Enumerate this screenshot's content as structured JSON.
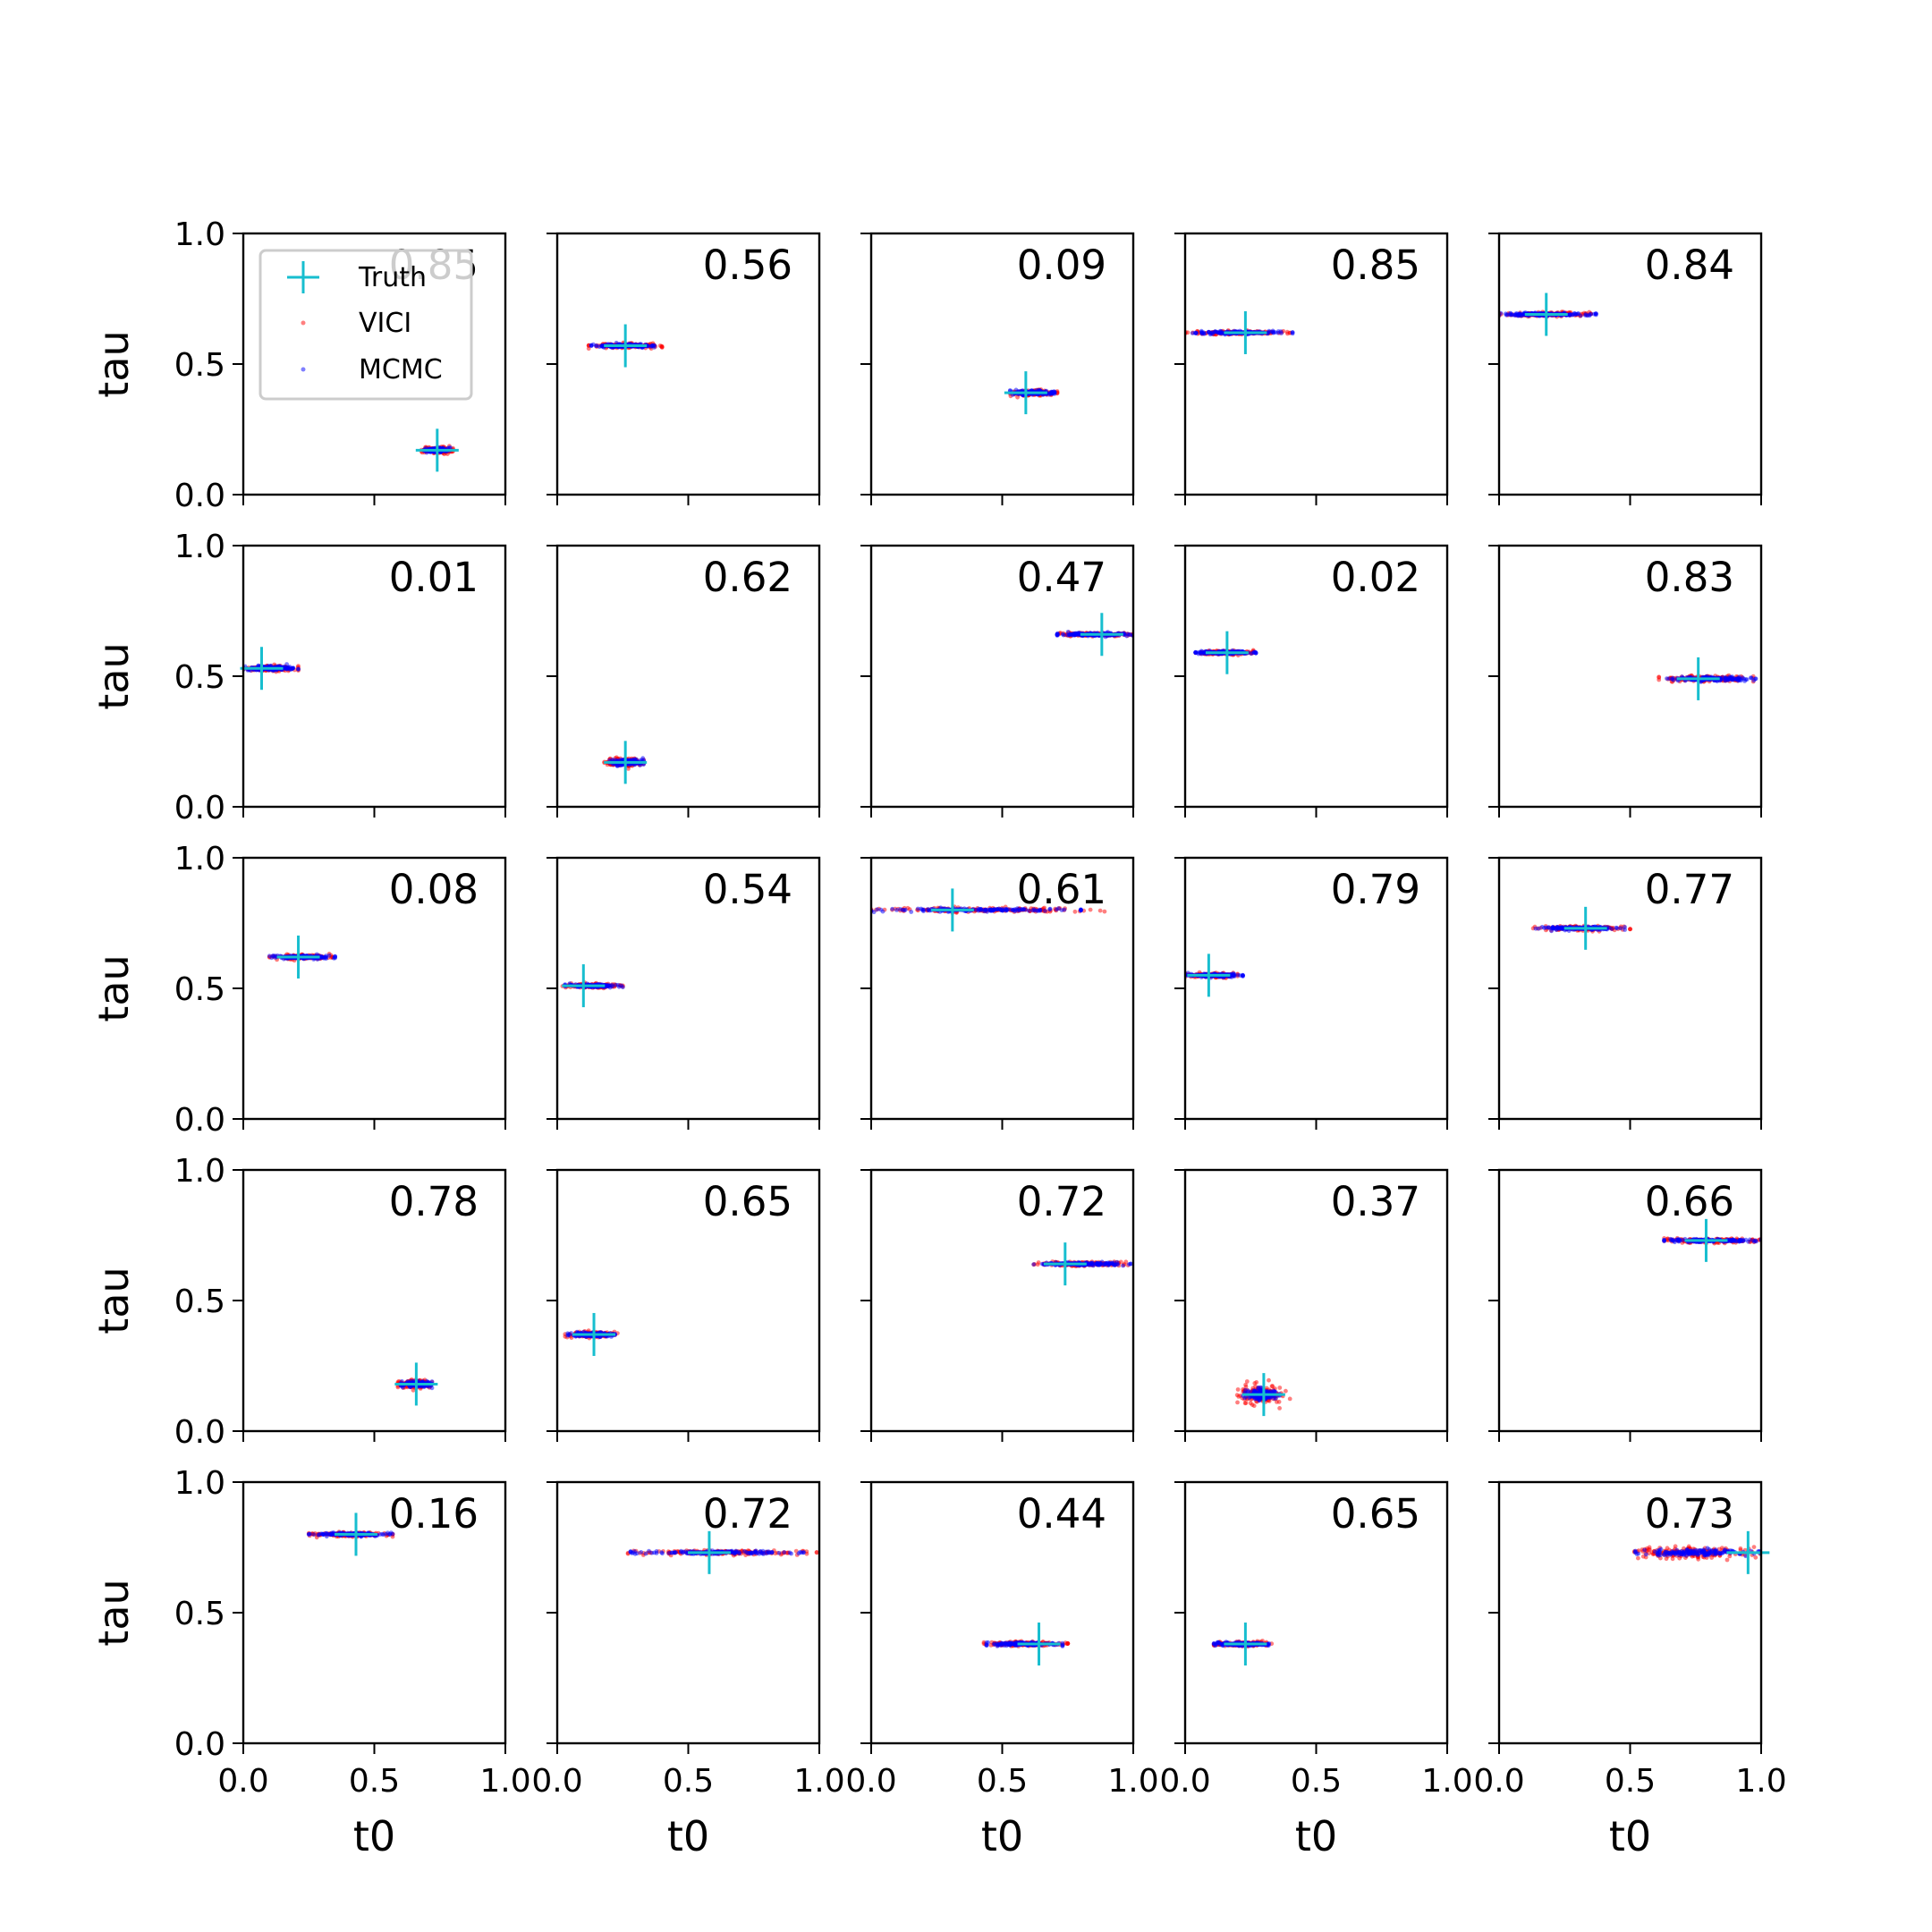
{
  "figure": {
    "legend": {
      "placement": "top-left of first panel",
      "entries": [
        {
          "label": "Truth",
          "marker": "plus",
          "color": "#17becf"
        },
        {
          "label": "VICI",
          "marker": "dot",
          "color": "#ff0000"
        },
        {
          "label": "MCMC",
          "marker": "dot",
          "color": "#0000ff"
        }
      ]
    },
    "xlabel": "t0",
    "ylabel": "tau",
    "xticks": [
      "0.0",
      "0.5",
      "1.0"
    ],
    "yticks": [
      "0.0",
      "0.5",
      "1.0"
    ]
  },
  "chart_data": {
    "type": "scatter",
    "layout": "5x5 grid of panels, shared axes",
    "xlabel": "t0",
    "ylabel": "tau",
    "xlim": [
      0,
      1
    ],
    "ylim": [
      0,
      1
    ],
    "grid": false,
    "series_names": [
      "Truth",
      "VICI",
      "MCMC"
    ],
    "panels": [
      {
        "label": "0.85",
        "truth": [
          0.74,
          0.17
        ],
        "vici": {
          "x": [
            0.68,
            0.8
          ],
          "y_sd": 0.006
        },
        "mcmc": {
          "x": [
            0.69,
            0.79
          ],
          "y_sd": 0.004
        }
      },
      {
        "label": "0.56",
        "truth": [
          0.26,
          0.57
        ],
        "vici": {
          "x": [
            0.12,
            0.4
          ],
          "y_sd": 0.004
        },
        "mcmc": {
          "x": [
            0.13,
            0.37
          ],
          "y_sd": 0.003
        }
      },
      {
        "label": "0.09",
        "truth": [
          0.59,
          0.39
        ],
        "vici": {
          "x": [
            0.53,
            0.71
          ],
          "y_sd": 0.005
        },
        "mcmc": {
          "x": [
            0.53,
            0.7
          ],
          "y_sd": 0.004
        }
      },
      {
        "label": "0.85",
        "truth": [
          0.23,
          0.62
        ],
        "vici": {
          "x": [
            0.0,
            0.4
          ],
          "y_sd": 0.003
        },
        "mcmc": {
          "x": [
            0.0,
            0.41
          ],
          "y_sd": 0.003
        }
      },
      {
        "label": "0.84",
        "truth": [
          0.18,
          0.69
        ],
        "vici": {
          "x": [
            0.0,
            0.35
          ],
          "y_sd": 0.004
        },
        "mcmc": {
          "x": [
            0.0,
            0.37
          ],
          "y_sd": 0.003
        }
      },
      {
        "label": "0.01",
        "truth": [
          0.07,
          0.53
        ],
        "vici": {
          "x": [
            0.0,
            0.21
          ],
          "y_sd": 0.005
        },
        "mcmc": {
          "x": [
            0.0,
            0.21
          ],
          "y_sd": 0.004
        }
      },
      {
        "label": "0.62",
        "truth": [
          0.26,
          0.17
        ],
        "vici": {
          "x": [
            0.18,
            0.33
          ],
          "y_sd": 0.008
        },
        "mcmc": {
          "x": [
            0.2,
            0.33
          ],
          "y_sd": 0.006
        }
      },
      {
        "label": "0.47",
        "truth": [
          0.88,
          0.66
        ],
        "vici": {
          "x": [
            0.71,
            1.0
          ],
          "y_sd": 0.003
        },
        "mcmc": {
          "x": [
            0.71,
            1.0
          ],
          "y_sd": 0.003
        }
      },
      {
        "label": "0.02",
        "truth": [
          0.16,
          0.59
        ],
        "vici": {
          "x": [
            0.04,
            0.26
          ],
          "y_sd": 0.004
        },
        "mcmc": {
          "x": [
            0.04,
            0.27
          ],
          "y_sd": 0.003
        }
      },
      {
        "label": "0.83",
        "truth": [
          0.76,
          0.49
        ],
        "vici": {
          "x": [
            0.61,
            0.97
          ],
          "y_sd": 0.005
        },
        "mcmc": {
          "x": [
            0.64,
            0.98
          ],
          "y_sd": 0.004
        }
      },
      {
        "label": "0.08",
        "truth": [
          0.21,
          0.62
        ],
        "vici": {
          "x": [
            0.1,
            0.34
          ],
          "y_sd": 0.004
        },
        "mcmc": {
          "x": [
            0.1,
            0.35
          ],
          "y_sd": 0.003
        }
      },
      {
        "label": "0.54",
        "truth": [
          0.1,
          0.51
        ],
        "vici": {
          "x": [
            0.02,
            0.25
          ],
          "y_sd": 0.004
        },
        "mcmc": {
          "x": [
            0.03,
            0.25
          ],
          "y_sd": 0.003
        }
      },
      {
        "label": "0.61",
        "truth": [
          0.31,
          0.8
        ],
        "vici": {
          "x": [
            0.0,
            0.9
          ],
          "y_sd": 0.004
        },
        "mcmc": {
          "x": [
            0.0,
            0.8
          ],
          "y_sd": 0.003
        }
      },
      {
        "label": "0.79",
        "truth": [
          0.09,
          0.55
        ],
        "vici": {
          "x": [
            0.0,
            0.2
          ],
          "y_sd": 0.004
        },
        "mcmc": {
          "x": [
            0.0,
            0.22
          ],
          "y_sd": 0.003
        }
      },
      {
        "label": "0.77",
        "truth": [
          0.33,
          0.73
        ],
        "vici": {
          "x": [
            0.13,
            0.5
          ],
          "y_sd": 0.004
        },
        "mcmc": {
          "x": [
            0.14,
            0.48
          ],
          "y_sd": 0.003
        }
      },
      {
        "label": "0.78",
        "truth": [
          0.66,
          0.18
        ],
        "vici": {
          "x": [
            0.59,
            0.72
          ],
          "y_sd": 0.007
        },
        "mcmc": {
          "x": [
            0.6,
            0.72
          ],
          "y_sd": 0.005
        }
      },
      {
        "label": "0.65",
        "truth": [
          0.14,
          0.37
        ],
        "vici": {
          "x": [
            0.03,
            0.23
          ],
          "y_sd": 0.005
        },
        "mcmc": {
          "x": [
            0.04,
            0.22
          ],
          "y_sd": 0.004
        }
      },
      {
        "label": "0.72",
        "truth": [
          0.74,
          0.64
        ],
        "vici": {
          "x": [
            0.62,
            0.98
          ],
          "y_sd": 0.004
        },
        "mcmc": {
          "x": [
            0.62,
            0.99
          ],
          "y_sd": 0.003
        }
      },
      {
        "label": "0.37",
        "truth": [
          0.3,
          0.14
        ],
        "vici": {
          "x": [
            0.19,
            0.4
          ],
          "y_sd": 0.018
        },
        "mcmc": {
          "x": [
            0.22,
            0.36
          ],
          "y_sd": 0.01
        }
      },
      {
        "label": "0.66",
        "truth": [
          0.79,
          0.73
        ],
        "vici": {
          "x": [
            0.63,
            1.0
          ],
          "y_sd": 0.004
        },
        "mcmc": {
          "x": [
            0.63,
            1.0
          ],
          "y_sd": 0.003
        }
      },
      {
        "label": "0.16",
        "truth": [
          0.43,
          0.8
        ],
        "vici": {
          "x": [
            0.25,
            0.57
          ],
          "y_sd": 0.004
        },
        "mcmc": {
          "x": [
            0.25,
            0.57
          ],
          "y_sd": 0.003
        }
      },
      {
        "label": "0.72",
        "truth": [
          0.58,
          0.73
        ],
        "vici": {
          "x": [
            0.27,
            0.99
          ],
          "y_sd": 0.004
        },
        "mcmc": {
          "x": [
            0.28,
            0.94
          ],
          "y_sd": 0.003
        }
      },
      {
        "label": "0.44",
        "truth": [
          0.64,
          0.38
        ],
        "vici": {
          "x": [
            0.43,
            0.75
          ],
          "y_sd": 0.004
        },
        "mcmc": {
          "x": [
            0.44,
            0.73
          ],
          "y_sd": 0.003
        }
      },
      {
        "label": "0.65",
        "truth": [
          0.23,
          0.38
        ],
        "vici": {
          "x": [
            0.11,
            0.33
          ],
          "y_sd": 0.004
        },
        "mcmc": {
          "x": [
            0.11,
            0.32
          ],
          "y_sd": 0.003
        }
      },
      {
        "label": "0.73",
        "truth": [
          0.95,
          0.73
        ],
        "vici": {
          "x": [
            0.47,
            1.0
          ],
          "y_sd": 0.012
        },
        "mcmc": {
          "x": [
            0.52,
            1.0
          ],
          "y_sd": 0.006
        }
      }
    ]
  }
}
